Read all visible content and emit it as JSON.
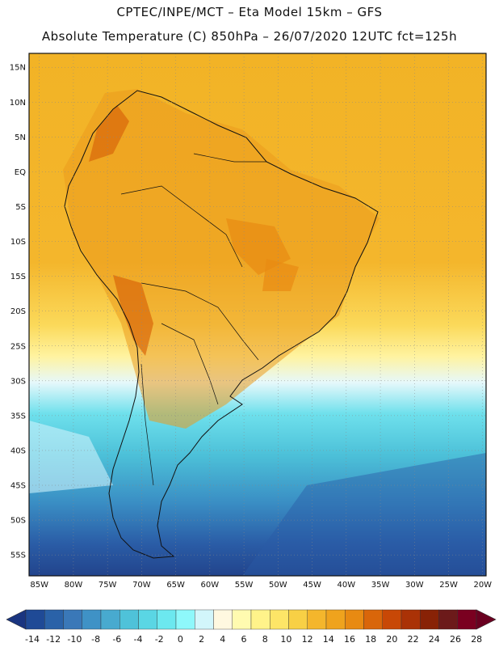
{
  "title": {
    "line1": "CPTEC/INPE/MCT –  Eta Model 15km – GFS",
    "line2": "Absolute Temperature (C) 850hPa – 26/07/2020 12UTC fct=125h"
  },
  "map": {
    "lon_labels": [
      "85W",
      "80W",
      "75W",
      "70W",
      "65W",
      "60W",
      "55W",
      "50W",
      "45W",
      "40W",
      "35W",
      "30W",
      "25W",
      "20W"
    ],
    "lat_labels": [
      "15N",
      "10N",
      "5N",
      "EQ",
      "5S",
      "10S",
      "15S",
      "20S",
      "25S",
      "30S",
      "35S",
      "40S",
      "45S",
      "50S",
      "55S"
    ]
  },
  "colorbar": {
    "labels": [
      "-14",
      "-12",
      "-10",
      "-8",
      "-6",
      "-4",
      "-2",
      "0",
      "2",
      "4",
      "6",
      "8",
      "10",
      "12",
      "14",
      "16",
      "18",
      "20",
      "22",
      "24",
      "26",
      "28"
    ],
    "colors": [
      "#1f4a96",
      "#2a62a8",
      "#3a78b8",
      "#3f92c6",
      "#48aacf",
      "#4fc2d9",
      "#5ad6e4",
      "#6ce8ef",
      "#8ef8fb",
      "#d2f6fb",
      "#fff8e0",
      "#fffbb0",
      "#fff38a",
      "#fde567",
      "#f8d045",
      "#f4b62c",
      "#efa31d",
      "#e88a12",
      "#d9660a",
      "#c84806",
      "#aa3206",
      "#882206",
      "#6c1a1a",
      "#7a0020"
    ],
    "underflow_color": "#1a3580",
    "overflow_color": "#6a0020"
  }
}
